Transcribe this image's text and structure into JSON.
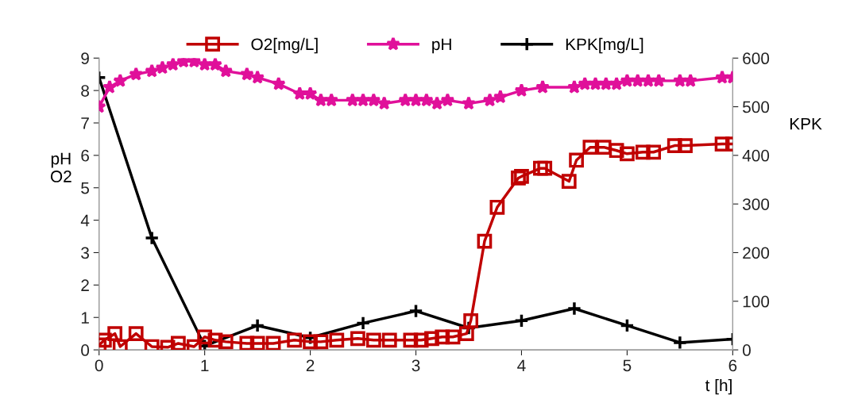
{
  "chart_data": {
    "type": "line",
    "xlabel": "t [h]",
    "ylabel": "pH\nO2",
    "y2label": "KPK",
    "xlim": [
      0,
      6
    ],
    "xticks": [
      0,
      1,
      2,
      3,
      4,
      5,
      6
    ],
    "ylim": [
      0,
      9
    ],
    "yticks": [
      0,
      1,
      2,
      3,
      4,
      5,
      6,
      7,
      8,
      9
    ],
    "y2lim": [
      0,
      600
    ],
    "y2ticks": [
      0,
      100,
      200,
      300,
      400,
      500,
      600
    ],
    "grid": false,
    "legend": "top",
    "line_style": "solid",
    "series": [
      {
        "name": "O2[mg/L]",
        "color": "#c00000",
        "marker": "square",
        "x": [
          0,
          0.05,
          0.15,
          0.2,
          0.35,
          0.5,
          0.65,
          0.75,
          0.9,
          1.0,
          1.1,
          1.2,
          1.4,
          1.5,
          1.65,
          1.85,
          2.0,
          2.1,
          2.25,
          2.45,
          2.6,
          2.75,
          2.95,
          3.05,
          3.15,
          3.25,
          3.35,
          3.48,
          3.52,
          3.65,
          3.77,
          3.97,
          4.0,
          4.18,
          4.22,
          4.45,
          4.52,
          4.65,
          4.78,
          4.9,
          5.0,
          5.15,
          5.25,
          5.45,
          5.55,
          5.9,
          6.0
        ],
        "values": [
          0.15,
          0.3,
          0.5,
          0.1,
          0.5,
          0.1,
          0.08,
          0.2,
          0.1,
          0.4,
          0.3,
          0.25,
          0.2,
          0.2,
          0.2,
          0.3,
          0.25,
          0.25,
          0.3,
          0.35,
          0.3,
          0.3,
          0.3,
          0.3,
          0.35,
          0.4,
          0.4,
          0.5,
          0.9,
          3.35,
          4.4,
          5.3,
          5.35,
          5.6,
          5.6,
          5.2,
          5.85,
          6.25,
          6.25,
          6.15,
          6.05,
          6.1,
          6.1,
          6.3,
          6.3,
          6.35,
          6.35
        ]
      },
      {
        "name": "pH",
        "color": "#e0109a",
        "marker": "star",
        "x": [
          0,
          0.1,
          0.2,
          0.35,
          0.5,
          0.6,
          0.7,
          0.8,
          0.9,
          1.0,
          1.1,
          1.2,
          1.4,
          1.5,
          1.7,
          1.9,
          2.0,
          2.1,
          2.2,
          2.4,
          2.5,
          2.6,
          2.7,
          2.9,
          3.0,
          3.1,
          3.2,
          3.3,
          3.5,
          3.7,
          3.8,
          4.0,
          4.2,
          4.5,
          4.6,
          4.7,
          4.8,
          4.9,
          5.0,
          5.1,
          5.2,
          5.3,
          5.5,
          5.6,
          5.9,
          6.0
        ],
        "values": [
          7.5,
          8.1,
          8.3,
          8.5,
          8.6,
          8.7,
          8.8,
          8.9,
          8.9,
          8.8,
          8.8,
          8.6,
          8.5,
          8.4,
          8.2,
          7.9,
          7.9,
          7.7,
          7.7,
          7.7,
          7.7,
          7.7,
          7.6,
          7.7,
          7.7,
          7.7,
          7.6,
          7.7,
          7.6,
          7.7,
          7.8,
          8.0,
          8.1,
          8.1,
          8.2,
          8.2,
          8.2,
          8.2,
          8.3,
          8.3,
          8.3,
          8.3,
          8.3,
          8.3,
          8.4,
          8.4
        ]
      },
      {
        "name": "KPK[mg/L]",
        "color": "#000000",
        "marker": "cross",
        "axis": "y2",
        "x": [
          0,
          0.5,
          1,
          1.5,
          2,
          2.5,
          3,
          3.5,
          4,
          4.5,
          5,
          5.5,
          6
        ],
        "values": [
          560,
          230,
          8,
          50,
          25,
          55,
          80,
          45,
          60,
          85,
          50,
          15,
          22
        ]
      }
    ]
  }
}
